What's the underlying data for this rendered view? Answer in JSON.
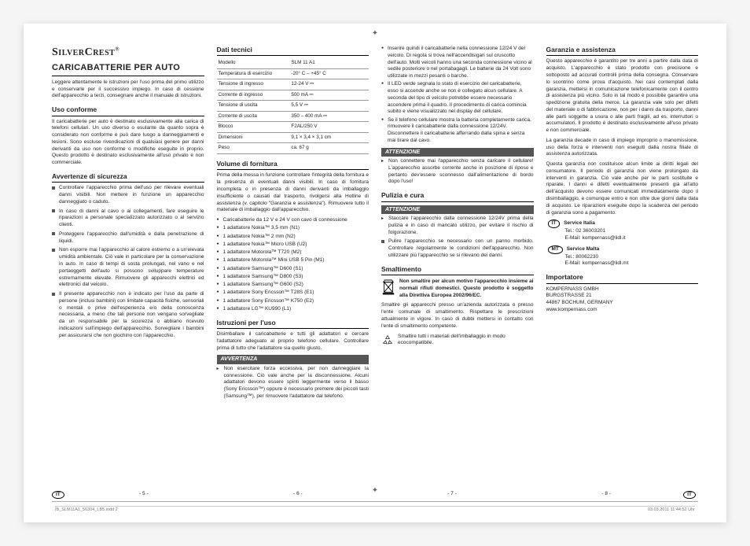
{
  "brand": "SilverCrest",
  "title": "CARICABATTERIE PER AUTO",
  "intro": "Leggere attentamente le istruzioni per l'uso prima del primo utilizzo e conservarle per il successivo impiego. In caso di cessione dell'apparecchio a terzi, consegnare anche il manuale di istruzioni.",
  "sections": {
    "uso": {
      "heading": "Uso conforme",
      "body": "Il caricabatterie per auto è destinato esclusivamente alla carica di telefoni cellulari. Un uso diverso o esulante da quanto sopra è considerato non conforme e può dare luogo a danneggiamenti e lesioni. Sono escluse rivendicazioni di qualsiasi genere per danni derivanti da uso non conforme o modifiche eseguite in proprio. Questo prodotto è destinato esclusivamente all'uso privato e non commerciale."
    },
    "sicurezza": {
      "heading": "Avvertenze di sicurezza",
      "items": [
        "Controllare l'apparecchio prima dell'uso per rilevare eventuali danni visibili. Non mettere in funzione un apparecchio danneggiato o caduto.",
        "In caso di danni al cavo o ai collegamenti, fare eseguire le riparazioni a personale specializzato autorizzato o al servizio clienti.",
        "Proteggere l'apparecchio dall'umidità e dalla penetrazione di liquidi.",
        "Non esporre mai l'apparecchio al calore estremo o a un'elevata umidità ambientale. Ciò vale in particolare per la conservazione in auto. In caso di tempi di sosta prolungati, nel vano e nel portaoggetti dell'auto si possono sviluppare temperature estremamente elevate. Rimuovere gli apparecchi elettrici ed elettronici dal veicolo.",
        "Il presente apparecchio non è indicato per l'uso da parte di persone (inclusi bambini) con limitate capacità fisiche, sensoriali o mentali o prive dell'esperienza e/o della conoscenza necessaria, a meno che tali persone non vengano sorvegliate da un responsabile per la sicurezza o abbiano ricevuto indicazioni sull'impiego dell'apparecchio. Sorvegliare i bambini per assicurarsi che non giochino con l'apparecchio."
      ]
    },
    "dati": {
      "heading": "Dati tecnici",
      "rows": [
        [
          "Modello",
          "SLM 11 A1"
        ],
        [
          "Temperatura di esercizio",
          "-20° C – +45° C"
        ],
        [
          "Tensione di ingresso",
          "12-24 V ⎓"
        ],
        [
          "Corrente di ingresso",
          "500 mA ⎓"
        ],
        [
          "Tensione di uscita",
          "5,5 V ⎓"
        ],
        [
          "Corrente di uscita",
          "350 – 400 mA ⎓"
        ],
        [
          "Blocco",
          "F2AL/250 V"
        ],
        [
          "Dimensioni",
          "9,1 × 3,4 × 3,1 cm"
        ],
        [
          "Peso",
          "ca. 67 g"
        ]
      ]
    },
    "fornitura": {
      "heading": "Volume di fornitura",
      "body": "Prima della messa in funzione controllare l'integrità della fornitura e la presenza di eventuali danni visibili. In caso di fornitura incompleta o in presenza di danni derivanti da imballaggio insufficiente o causati dal trasporto, rivolgersi alla Hotline di assistenza (v. capitolo \"Garanzia e assistenza\"). Rimuovere tutto il materiale di imballaggio dall'apparecchio.",
      "items": [
        "Caricabatterie da 12 V e 24 V con cavo di connessione",
        "1 adattatore Nokia™ 3,5 mm (N1)",
        "1 adattatore Nokia™ 2 mm (N2)",
        "1 adattatore Nokia™ Micro USB (U2)",
        "1 adattatore Motorola™ T720 (M2)",
        "1 adattatore Motorola™ Mini USB 5 Pin (M1)",
        "1 adattatore Samsung™ D600 (S1)",
        "1 adattatore Samsung™ D800 (S3)",
        "1 adattatore Samsung™ G600 (S2)",
        "1 adattatore Sony Ericsson™ T28S (E1)",
        "1 adattatore Sony Ericsson™ K750 (E2)",
        "1 adattatore LG™ KU990 (L1)"
      ]
    },
    "istruzioni": {
      "heading": "Istruzioni per l'uso",
      "body": "Disimballare il caricabatterie e tutti gli adattatori e cercare l'adattatore adeguato al proprio telefono cellulare. Controllare prima di tutto che l'adattatore sia quello giusto.",
      "warn_label": "AVVERTENZA",
      "warn_items": [
        "Non esercitare forza eccessiva, per non danneggiare la connessione. Ciò vale anche per la disconnessione. Alcuni adattatori devono essere spinti leggermente verso il basso (Sony Ericsson™) oppure è necessario premere dei piccoli tasti (Samsung™), per rimuovere l'adattatore dal telefono."
      ],
      "cont_items": [
        "Inserire quindi il caricabatterie nella connessione 12/24 V del veicolo. Di regola si trova nell'accendisigari sul cruscotto dell'auto. Molti veicoli hanno una seconda connessione vicino al sedile posteriore o nel portabagagli. Le batterie da 24 Volt sono utilizzate in mezzi pesanti o barche.",
        "Il LED verde segnala lo stato di esercizio del caricabatterie, esso si accende anche se non è collegato alcun cellulare. A seconda del tipo di veicolo potrebbe essere necessario accendere prima il quadro. Il procedimento di carica comincia subito e viene visualizzato nel display del cellulare.",
        "Se il telefono cellulare mostra la batteria completamente carica, rimuovere il caricabatterie dalla connessione 12/24V. Disconnettere il caricabatterie afferrando dalla spina e senza mai tirare dal cavo."
      ],
      "attenzione_label": "ATTENZIONE",
      "attenzione_items": [
        "Non connettere mai l'apparecchio senza caricare il cellulare! L'apparecchio assorbe corrente anche in posizione di riposo e pertanto dev'essere sconnesso dall'alimentazione di bordo dopo l'uso!"
      ]
    },
    "pulizia": {
      "heading": "Pulizia e cura",
      "warn_label": "ATTENZIONE",
      "warn_items": [
        "Staccare l'apparecchio dalla connessione 12/24V prima della pulizia e in caso di mancato utilizzo, per evitare il rischio di folgorazione."
      ],
      "items": [
        "Pulire l'apparecchio se necessario con un panno morbido. Controllare regolarmente le condizioni dell'apparecchio. Non utilizzare più l'apparecchio se si rilevano dei danni."
      ]
    },
    "smaltimento": {
      "heading": "Smaltimento",
      "bin_text": "Non smaltire per alcun motivo l'apparecchio insieme ai normali rifiuti domestici. Questo prodotto è soggetto alla Direttiva Europea 2002/96/EC.",
      "body": "Smaltire gli apparecchi presso un'azienda autorizzata o presso l'ente comunale di smaltimento. Rispettare le prescrizioni attualmente in vigore. In caso di dubbi mettersi in contatto con l'ente di smaltimento competente.",
      "recycle": "Smaltire tutti i materiali dell'imballaggio in modo ecocompatibile."
    },
    "garanzia": {
      "heading": "Garanzia e assistenza",
      "p1": "Questo apparecchio è garantito per tre anni a partire dalla data di acquisto. L'apparecchio è stato prodotto con precisione e sottoposto ad accurati controlli prima della consegna. Conservare lo scontrino come prova d'acquisto. Nei casi contemplati dalla garanzia, mettersi in comunicazione telefonicamente con il centro di assistenza più vicino. Solo in tal modo è possibile garantire una spedizione gratuita della merce. La garanzia vale solo per difetti del materiale o di fabbricazione, non per i danni da trasporto, danni alle parti soggette a usura o alle parti fragili, ad es. interruttori o accumulatori. Il prodotto è destinato esclusivamente all'uso privato e non commerciale.",
      "p2": "La garanzia decade in caso di impiego improprio o manomissione, uso della forza e interventi non eseguiti dalla nostra filiale di assistenza autorizzata.",
      "p3": "Questa garanzia non costituisce alcun limite ai diritti legali del consumatore. Il periodo di garanzia non viene prolungato da interventi in garanzia. Ciò vale anche per le parti sostituite e riparate. I danni e difetti eventualmente presenti già all'atto dell'acquisto devono essere comunicati immediatamente dopo il disimballaggio, e comunque entro e non oltre due giorni dalla data di acquisto. Le riparazioni eseguite dopo la scadenza del periodo di garanzia sono a pagamento.",
      "services": [
        {
          "badge": "IT",
          "name": "Service Italia",
          "tel": "Tel.: 02 36003201",
          "mail": "E-Mail: kompernass@lidl.it"
        },
        {
          "badge": "MT",
          "name": "Service Malta",
          "tel": "Tel.: 80062230",
          "mail": "E-Mail: kompernass@lidl.mt"
        }
      ]
    },
    "importatore": {
      "heading": "Importatore",
      "lines": [
        "KOMPERNASS GMBH",
        "BURGSTRASSE 21",
        "44867 BOCHUM, GERMANY",
        "www.kompernass.com"
      ]
    }
  },
  "footer": {
    "lang_badge": "IT",
    "pages": [
      "- 5 -",
      "- 6 -",
      "- 7 -",
      "- 8 -"
    ],
    "file": "IB_SLM11A1_56304_LB5.indd   2",
    "timestamp": "03.03.2011   11:44:52 Uhr"
  }
}
